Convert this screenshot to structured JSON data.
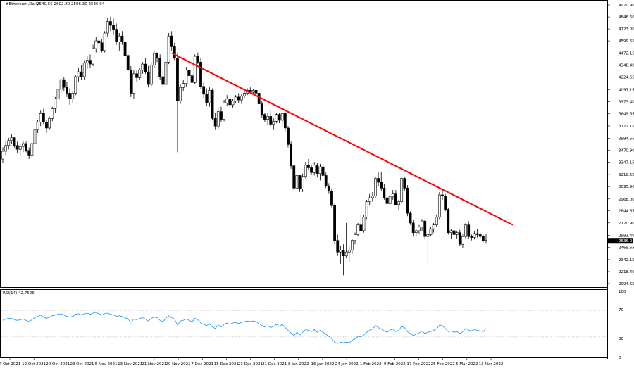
{
  "header": {
    "symbol": "#Ethereum,Daily",
    "ohlc": "2540.55 2602.80 2506.30 2536.04"
  },
  "indicator": {
    "label": "RSI(14) 42.7526",
    "levels": [
      "100",
      "70",
      "30",
      "0"
    ]
  },
  "colors": {
    "trendline": "#ff0000",
    "candle": "#000000",
    "rsi_line": "#1e90ff",
    "grid_line": "#c0c0c0",
    "current_price_tag": "#000000"
  },
  "chart_data": {
    "type": "candlestick",
    "price_axis_ticks": [
      "4970.90",
      "4846.60",
      "4723.00",
      "4599.65",
      "4472.15",
      "4348.40",
      "4224.65",
      "4097.15",
      "3973.40",
      "3849.65",
      "3722.15",
      "3594.65",
      "3470.90",
      "3347.15",
      "3219.65",
      "3095.90",
      "2968.00",
      "2844.65",
      "2720.90",
      "2593.40",
      "2469.65",
      "2342.15",
      "2218.40",
      "2094.65"
    ],
    "current_price": "2536.04",
    "ylim": [
      2094.65,
      4970.9
    ],
    "date_ticks": [
      "4 Oct 2021",
      "12 Oct 2021",
      "20 Oct 2021",
      "28 Oct 2021",
      "5 Nov 2021",
      "13 Nov 2021",
      "21 Nov 2021",
      "29 Nov 2021",
      "7 Dec 2021",
      "15 Dec 2021",
      "23 Dec 2021",
      "31 Dec 2021",
      "8 Jan 2022",
      "16 Jan 2022",
      "24 Jan 2022",
      "1 Feb 2022",
      "9 Feb 2022",
      "17 Feb 2022",
      "25 Feb 2022",
      "5 Mar 2022",
      "13 Mar 2022"
    ],
    "candles": [
      [
        3380,
        3500,
        3340,
        3460
      ],
      [
        3460,
        3560,
        3420,
        3520
      ],
      [
        3520,
        3600,
        3480,
        3570
      ],
      [
        3570,
        3640,
        3540,
        3600
      ],
      [
        3600,
        3610,
        3500,
        3520
      ],
      [
        3520,
        3560,
        3440,
        3480
      ],
      [
        3480,
        3540,
        3420,
        3510
      ],
      [
        3510,
        3570,
        3450,
        3540
      ],
      [
        3540,
        3560,
        3450,
        3470
      ],
      [
        3470,
        3500,
        3380,
        3420
      ],
      [
        3420,
        3560,
        3400,
        3540
      ],
      [
        3540,
        3700,
        3520,
        3680
      ],
      [
        3680,
        3780,
        3650,
        3760
      ],
      [
        3760,
        3880,
        3720,
        3850
      ],
      [
        3850,
        3900,
        3740,
        3760
      ],
      [
        3760,
        3780,
        3650,
        3700
      ],
      [
        3700,
        3820,
        3680,
        3800
      ],
      [
        3800,
        3920,
        3770,
        3900
      ],
      [
        3900,
        4020,
        3860,
        4000
      ],
      [
        4000,
        4120,
        3980,
        4100
      ],
      [
        4100,
        4250,
        4060,
        4200
      ],
      [
        4200,
        4230,
        4080,
        4120
      ],
      [
        4120,
        4180,
        4020,
        4060
      ],
      [
        4060,
        4110,
        3940,
        4000
      ],
      [
        4000,
        4080,
        3960,
        4060
      ],
      [
        4060,
        4250,
        4040,
        4230
      ],
      [
        4230,
        4320,
        4180,
        4280
      ],
      [
        4280,
        4350,
        4200,
        4230
      ],
      [
        4230,
        4400,
        4200,
        4370
      ],
      [
        4370,
        4450,
        4310,
        4400
      ],
      [
        4400,
        4460,
        4320,
        4360
      ],
      [
        4360,
        4560,
        4340,
        4520
      ],
      [
        4520,
        4640,
        4480,
        4600
      ],
      [
        4600,
        4660,
        4520,
        4580
      ],
      [
        4580,
        4620,
        4480,
        4500
      ],
      [
        4500,
        4700,
        4480,
        4680
      ],
      [
        4680,
        4840,
        4640,
        4800
      ],
      [
        4800,
        4850,
        4700,
        4760
      ],
      [
        4760,
        4830,
        4660,
        4720
      ],
      [
        4720,
        4780,
        4560,
        4590
      ],
      [
        4590,
        4680,
        4500,
        4650
      ],
      [
        4650,
        4700,
        4560,
        4590
      ],
      [
        4590,
        4620,
        4420,
        4450
      ],
      [
        4450,
        4480,
        4280,
        4300
      ],
      [
        4300,
        4340,
        4020,
        4060
      ],
      [
        4060,
        4300,
        4000,
        4260
      ],
      [
        4260,
        4300,
        4180,
        4220
      ],
      [
        4220,
        4320,
        4200,
        4300
      ],
      [
        4300,
        4380,
        4260,
        4360
      ],
      [
        4360,
        4420,
        4260,
        4280
      ],
      [
        4280,
        4340,
        4120,
        4150
      ],
      [
        4150,
        4380,
        4120,
        4350
      ],
      [
        4350,
        4500,
        4320,
        4470
      ],
      [
        4470,
        4480,
        4380,
        4420
      ],
      [
        4420,
        4460,
        4200,
        4230
      ],
      [
        4230,
        4300,
        4120,
        4150
      ],
      [
        4150,
        4400,
        4130,
        4380
      ],
      [
        4380,
        4680,
        4360,
        4650
      ],
      [
        4650,
        4700,
        4500,
        4540
      ],
      [
        4540,
        4580,
        4400,
        4420
      ],
      [
        4420,
        4470,
        3450,
        3980
      ],
      [
        3980,
        4150,
        3950,
        4120
      ],
      [
        4120,
        4200,
        4080,
        4160
      ],
      [
        4160,
        4330,
        4130,
        4300
      ],
      [
        4300,
        4380,
        4200,
        4240
      ],
      [
        4240,
        4270,
        4140,
        4170
      ],
      [
        4170,
        4460,
        4150,
        4440
      ],
      [
        4440,
        4480,
        4360,
        4380
      ],
      [
        4380,
        4420,
        4100,
        4130
      ],
      [
        4130,
        4170,
        4010,
        4050
      ],
      [
        4050,
        4110,
        3930,
        3960
      ],
      [
        3960,
        4120,
        3920,
        4090
      ],
      [
        4090,
        4110,
        3780,
        3800
      ],
      [
        3800,
        3860,
        3680,
        3720
      ],
      [
        3720,
        3900,
        3690,
        3870
      ],
      [
        3870,
        3920,
        3760,
        3790
      ],
      [
        3790,
        3990,
        3770,
        3960
      ],
      [
        3960,
        4040,
        3930,
        4000
      ],
      [
        4000,
        4020,
        3900,
        3940
      ],
      [
        3940,
        4000,
        3910,
        3980
      ],
      [
        3980,
        4040,
        3960,
        4020
      ],
      [
        4020,
        4060,
        3960,
        3990
      ],
      [
        3990,
        4050,
        3950,
        4030
      ],
      [
        4030,
        4080,
        4010,
        4060
      ],
      [
        4060,
        4110,
        4040,
        4090
      ],
      [
        4090,
        4120,
        4050,
        4070
      ],
      [
        4070,
        4100,
        4050,
        4090
      ],
      [
        4090,
        4110,
        4040,
        4060
      ],
      [
        4060,
        4080,
        3930,
        3950
      ],
      [
        3950,
        3980,
        3810,
        3840
      ],
      [
        3840,
        3860,
        3760,
        3790
      ],
      [
        3790,
        3860,
        3730,
        3820
      ],
      [
        3820,
        3880,
        3710,
        3740
      ],
      [
        3740,
        3800,
        3680,
        3770
      ],
      [
        3770,
        3860,
        3750,
        3840
      ],
      [
        3840,
        3860,
        3750,
        3780
      ],
      [
        3780,
        3860,
        3720,
        3850
      ],
      [
        3850,
        3870,
        3660,
        3700
      ],
      [
        3700,
        3720,
        3500,
        3530
      ],
      [
        3530,
        3560,
        3280,
        3310
      ],
      [
        3310,
        3320,
        3050,
        3080
      ],
      [
        3080,
        3250,
        3060,
        3210
      ],
      [
        3210,
        3220,
        3040,
        3070
      ],
      [
        3070,
        3230,
        3040,
        3200
      ],
      [
        3200,
        3350,
        3180,
        3320
      ],
      [
        3320,
        3380,
        3260,
        3290
      ],
      [
        3290,
        3320,
        3220,
        3240
      ],
      [
        3240,
        3350,
        3210,
        3320
      ],
      [
        3320,
        3340,
        3190,
        3230
      ],
      [
        3230,
        3330,
        3160,
        3300
      ],
      [
        3300,
        3310,
        3180,
        3210
      ],
      [
        3210,
        3240,
        3080,
        3100
      ],
      [
        3100,
        3130,
        3020,
        3050
      ],
      [
        3050,
        3080,
        2880,
        2900
      ],
      [
        2900,
        2920,
        2500,
        2540
      ],
      [
        2540,
        2600,
        2380,
        2420
      ],
      [
        2420,
        2480,
        2300,
        2440
      ],
      [
        2440,
        2500,
        2180,
        2380
      ],
      [
        2380,
        2720,
        2360,
        2420
      ],
      [
        2420,
        2480,
        2320,
        2440
      ],
      [
        2440,
        2560,
        2400,
        2540
      ],
      [
        2540,
        2620,
        2500,
        2600
      ],
      [
        2600,
        2720,
        2580,
        2700
      ],
      [
        2700,
        2800,
        2660,
        2640
      ],
      [
        2640,
        2800,
        2620,
        2780
      ],
      [
        2780,
        2960,
        2760,
        2940
      ],
      [
        2940,
        3020,
        2900,
        2980
      ],
      [
        2980,
        3040,
        2940,
        3000
      ],
      [
        3000,
        3200,
        2980,
        3180
      ],
      [
        3180,
        3240,
        3100,
        3140
      ],
      [
        3140,
        3250,
        3050,
        3080
      ],
      [
        3080,
        3120,
        2960,
        2980
      ],
      [
        2980,
        3010,
        2880,
        2920
      ],
      [
        2920,
        3020,
        2900,
        2990
      ],
      [
        2990,
        3060,
        2960,
        3020
      ],
      [
        3020,
        3060,
        2900,
        2910
      ],
      [
        2910,
        2960,
        2850,
        2940
      ],
      [
        2940,
        3200,
        2920,
        3180
      ],
      [
        3180,
        3200,
        3050,
        3080
      ],
      [
        3080,
        3110,
        2790,
        2820
      ],
      [
        2820,
        2840,
        2700,
        2720
      ],
      [
        2720,
        2750,
        2580,
        2620
      ],
      [
        2620,
        2660,
        2580,
        2640
      ],
      [
        2640,
        2700,
        2610,
        2680
      ],
      [
        2680,
        2760,
        2640,
        2740
      ],
      [
        2740,
        2760,
        2550,
        2580
      ],
      [
        2580,
        2620,
        2300,
        2600
      ],
      [
        2600,
        2680,
        2580,
        2660
      ],
      [
        2660,
        2720,
        2620,
        2700
      ],
      [
        2700,
        2800,
        2680,
        2780
      ],
      [
        2780,
        3040,
        2760,
        3010
      ],
      [
        3010,
        3060,
        2960,
        3000
      ],
      [
        3000,
        3020,
        2840,
        2860
      ],
      [
        2860,
        2880,
        2600,
        2620
      ],
      [
        2620,
        2660,
        2560,
        2640
      ],
      [
        2640,
        2700,
        2580,
        2600
      ],
      [
        2600,
        2640,
        2560,
        2620
      ],
      [
        2620,
        2650,
        2480,
        2500
      ],
      [
        2500,
        2600,
        2460,
        2580
      ],
      [
        2580,
        2720,
        2560,
        2700
      ],
      [
        2700,
        2740,
        2560,
        2580
      ],
      [
        2580,
        2600,
        2540,
        2570
      ],
      [
        2570,
        2640,
        2550,
        2610
      ],
      [
        2610,
        2660,
        2570,
        2600
      ],
      [
        2600,
        2620,
        2550,
        2580
      ],
      [
        2580,
        2600,
        2520,
        2540
      ],
      [
        2540,
        2603,
        2506,
        2536
      ]
    ],
    "trendline": {
      "start": [
        "29 Nov 2021",
        4472.15
      ],
      "end": [
        "13 Mar 2022",
        2700
      ]
    },
    "rsi": {
      "name": "RSI(14)",
      "last": "42.7526",
      "ylim": [
        0,
        100
      ],
      "values": [
        55,
        57,
        58,
        58,
        56,
        55,
        56,
        57,
        55,
        53,
        56,
        59,
        61,
        63,
        60,
        58,
        60,
        62,
        63,
        64,
        65,
        63,
        61,
        60,
        61,
        64,
        65,
        63,
        65,
        66,
        64,
        66,
        67,
        65,
        63,
        65,
        66,
        64,
        63,
        61,
        62,
        61,
        59,
        57,
        52,
        57,
        56,
        58,
        59,
        57,
        54,
        58,
        60,
        59,
        55,
        53,
        58,
        62,
        59,
        57,
        48,
        54,
        55,
        57,
        55,
        53,
        58,
        56,
        51,
        49,
        47,
        50,
        45,
        43,
        48,
        45,
        49,
        51,
        49,
        51,
        52,
        50,
        52,
        53,
        54,
        53,
        54,
        53,
        50,
        47,
        45,
        47,
        44,
        46,
        49,
        46,
        49,
        44,
        40,
        36,
        32,
        37,
        33,
        37,
        41,
        40,
        38,
        41,
        37,
        40,
        37,
        34,
        31,
        27,
        22,
        20,
        22,
        21,
        22,
        21,
        25,
        27,
        31,
        30,
        33,
        37,
        40,
        42,
        47,
        44,
        42,
        39,
        37,
        40,
        42,
        38,
        40,
        46,
        44,
        38,
        35,
        32,
        34,
        36,
        39,
        35,
        37,
        38,
        40,
        42,
        48,
        47,
        43,
        38,
        39,
        37,
        38,
        35,
        38,
        43,
        40,
        39,
        41,
        40,
        39,
        38,
        42.75
      ]
    }
  }
}
